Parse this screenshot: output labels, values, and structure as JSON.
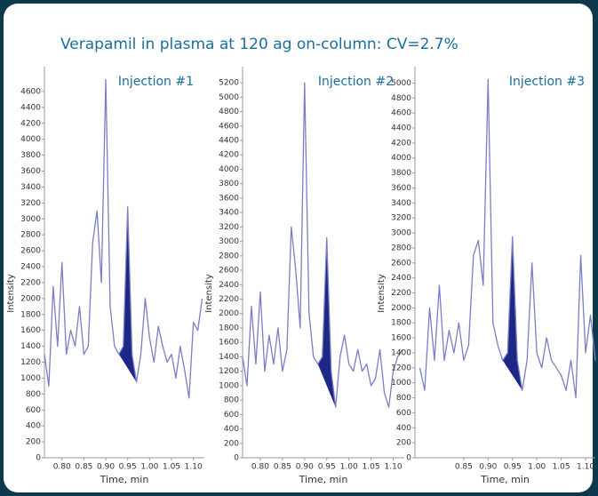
{
  "title": "Verapamil in plasma at 120 ag on-column: CV=2.7%",
  "chart_data": [
    {
      "type": "line",
      "title": "Injection #1",
      "ylabel": "Intensity",
      "xlabel": "Time, min",
      "color": "#7a7ec6",
      "area_color": "#1d2785",
      "xlim": [
        0.76,
        1.125
      ],
      "ylim": [
        0,
        4800
      ],
      "xticks": [
        {
          "value": 0.8,
          "label": "0.80"
        },
        0.85,
        {
          "value": 0.9,
          "label": "0.90"
        },
        0.95,
        {
          "value": 1.0,
          "label": "1.00"
        },
        1.05,
        {
          "value": 1.1,
          "label": "1.10"
        }
      ],
      "yticks": [
        0,
        200,
        400,
        600,
        800,
        1000,
        1200,
        1400,
        1600,
        1800,
        2000,
        2200,
        2400,
        2600,
        2800,
        3000,
        3200,
        3400,
        3600,
        3800,
        4000,
        4200,
        4400,
        4600
      ],
      "peak_area_x": [
        0.93,
        0.97
      ],
      "x": [
        0.76,
        0.77,
        0.78,
        0.79,
        0.8,
        0.81,
        0.82,
        0.83,
        0.84,
        0.85,
        0.86,
        0.87,
        0.88,
        0.89,
        0.9,
        0.91,
        0.92,
        0.93,
        0.94,
        0.95,
        0.96,
        0.97,
        0.98,
        0.99,
        1.0,
        1.01,
        1.02,
        1.03,
        1.04,
        1.05,
        1.06,
        1.07,
        1.08,
        1.09,
        1.1,
        1.11,
        1.12
      ],
      "values": [
        1300,
        900,
        2150,
        1400,
        2450,
        1300,
        1600,
        1400,
        1900,
        1300,
        1400,
        2700,
        3100,
        2200,
        4750,
        1900,
        1400,
        1300,
        1400,
        3150,
        1300,
        950,
        1300,
        2000,
        1500,
        1200,
        1650,
        1400,
        1200,
        1300,
        1000,
        1400,
        1100,
        750,
        1700,
        1600,
        2000
      ]
    },
    {
      "type": "line",
      "title": "Injection #2",
      "ylabel": "Intensity",
      "xlabel": "Time, min",
      "color": "#7a7ec6",
      "area_color": "#1d2785",
      "xlim": [
        0.76,
        1.125
      ],
      "ylim": [
        0,
        5300
      ],
      "xticks": [
        {
          "value": 0.8,
          "label": "0.80"
        },
        0.85,
        {
          "value": 0.9,
          "label": "0.90"
        },
        0.95,
        {
          "value": 1.0,
          "label": "1.00"
        },
        1.05,
        {
          "value": 1.1,
          "label": "1.10"
        }
      ],
      "yticks": [
        0,
        200,
        400,
        600,
        800,
        1000,
        1200,
        1400,
        1600,
        1800,
        2000,
        2200,
        2400,
        2600,
        2800,
        3000,
        3200,
        3400,
        3600,
        3800,
        4000,
        4200,
        4400,
        4600,
        4800,
        5000,
        5200
      ],
      "peak_area_x": [
        0.93,
        0.97
      ],
      "x": [
        0.76,
        0.77,
        0.78,
        0.79,
        0.8,
        0.81,
        0.82,
        0.83,
        0.84,
        0.85,
        0.86,
        0.87,
        0.88,
        0.89,
        0.9,
        0.91,
        0.92,
        0.93,
        0.94,
        0.95,
        0.96,
        0.97,
        0.98,
        0.99,
        1.0,
        1.01,
        1.02,
        1.03,
        1.04,
        1.05,
        1.06,
        1.07,
        1.08,
        1.09,
        1.1,
        1.11,
        1.12
      ],
      "values": [
        1400,
        1000,
        2100,
        1300,
        2300,
        1200,
        1700,
        1300,
        1800,
        1200,
        1500,
        3200,
        2600,
        1800,
        5200,
        2000,
        1400,
        1300,
        1400,
        3050,
        1200,
        700,
        1400,
        1700,
        1300,
        1200,
        1500,
        1200,
        1300,
        1000,
        1100,
        1500,
        900,
        700,
        1200,
        1400,
        1500
      ]
    },
    {
      "type": "line",
      "title": "Injection #3",
      "ylabel": "Intensity",
      "xlabel": "Time, min",
      "color": "#7a7ec6",
      "area_color": "#1d2785",
      "xlim": [
        0.75,
        1.12
      ],
      "ylim": [
        0,
        5100
      ],
      "xticks": [
        0.85,
        {
          "value": 0.9,
          "label": "0.90"
        },
        0.95,
        {
          "value": 1.0,
          "label": "1.00"
        },
        1.05,
        {
          "value": 1.1,
          "label": "1.10"
        }
      ],
      "yticks": [
        0,
        200,
        400,
        600,
        800,
        1000,
        1200,
        1400,
        1600,
        1800,
        2000,
        2200,
        2400,
        2600,
        2800,
        3000,
        3200,
        3400,
        3600,
        3800,
        4000,
        4200,
        4400,
        4600,
        4800,
        5000
      ],
      "peak_area_x": [
        0.93,
        0.97
      ],
      "x": [
        0.76,
        0.77,
        0.78,
        0.79,
        0.8,
        0.81,
        0.82,
        0.83,
        0.84,
        0.85,
        0.86,
        0.87,
        0.88,
        0.89,
        0.9,
        0.91,
        0.92,
        0.93,
        0.94,
        0.95,
        0.96,
        0.97,
        0.98,
        0.99,
        1.0,
        1.01,
        1.02,
        1.03,
        1.04,
        1.05,
        1.06,
        1.07,
        1.08,
        1.09,
        1.1,
        1.11,
        1.12
      ],
      "values": [
        1200,
        900,
        2000,
        1300,
        2300,
        1300,
        1700,
        1400,
        1800,
        1300,
        1500,
        2700,
        2900,
        2300,
        5050,
        1800,
        1500,
        1300,
        1400,
        2950,
        1300,
        900,
        1300,
        2600,
        1400,
        1200,
        1600,
        1300,
        1200,
        1100,
        900,
        1300,
        800,
        2700,
        1400,
        1900,
        1300
      ]
    }
  ]
}
